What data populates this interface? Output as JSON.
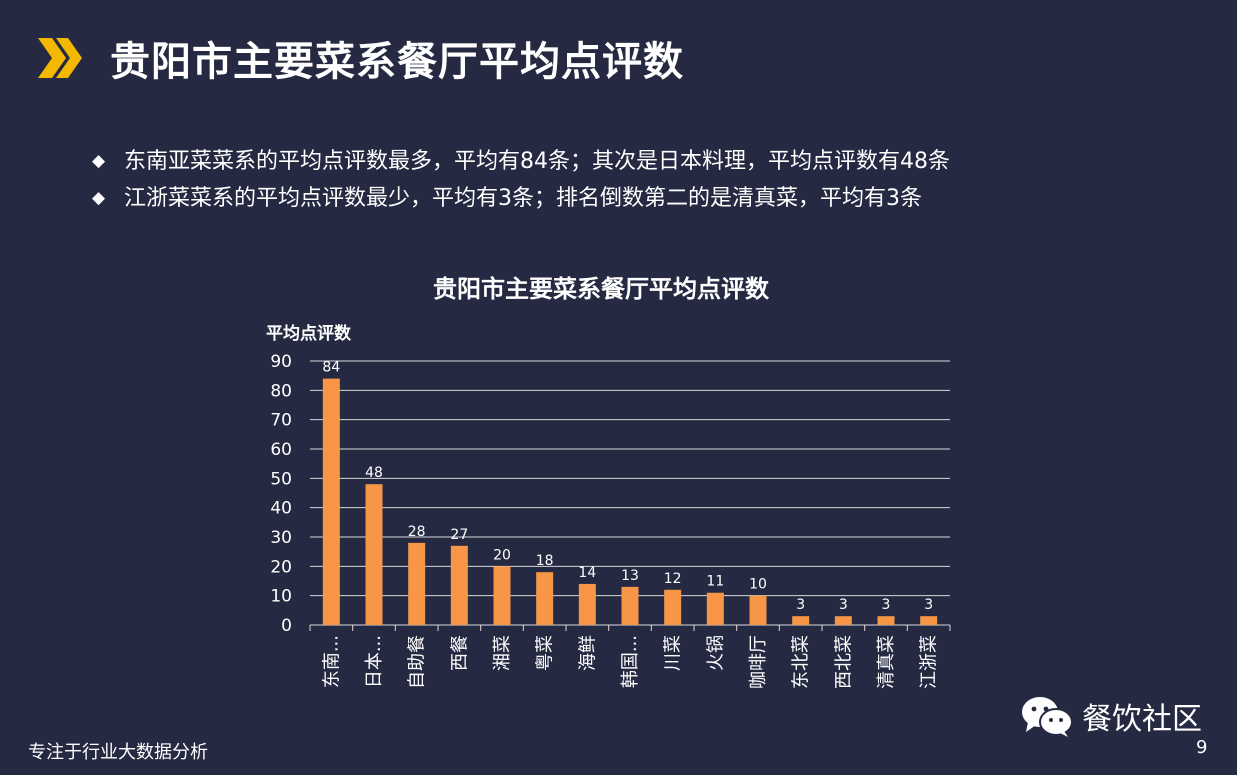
{
  "header": {
    "title": "贵阳市主要菜系餐厅平均点评数"
  },
  "summary": {
    "bullets": [
      "东南亚菜菜系的平均点评数最多，平均有84条；其次是日本料理，平均点评数有48条",
      "江浙菜菜系的平均点评数最少，平均有3条；排名倒数第二的是清真菜，平均有3条"
    ]
  },
  "chart_data": {
    "type": "bar",
    "title": "贵阳市主要菜系餐厅平均点评数",
    "xlabel": "",
    "ylabel": "平均点评数",
    "ylim": [
      0,
      90
    ],
    "yticks": [
      0,
      10,
      20,
      30,
      40,
      50,
      60,
      70,
      80,
      90
    ],
    "grid": true,
    "categories": [
      "东南...",
      "日本...",
      "自助餐",
      "西餐",
      "湘菜",
      "粤菜",
      "海鲜",
      "韩国...",
      "川菜",
      "火锅",
      "咖啡厅",
      "东北菜",
      "西北菜",
      "清真菜",
      "江浙菜"
    ],
    "values": [
      84,
      48,
      28,
      27,
      20,
      18,
      14,
      13,
      12,
      11,
      10,
      3,
      3,
      3,
      3
    ],
    "bar_color": "#f79646",
    "grid_color": "#d9d9d9"
  },
  "footer": {
    "tagline": "专注于行业大数据分析",
    "brand": "餐饮社区",
    "page_number": "9"
  },
  "colors": {
    "background": "#252a42",
    "accent": "#f5b800"
  }
}
